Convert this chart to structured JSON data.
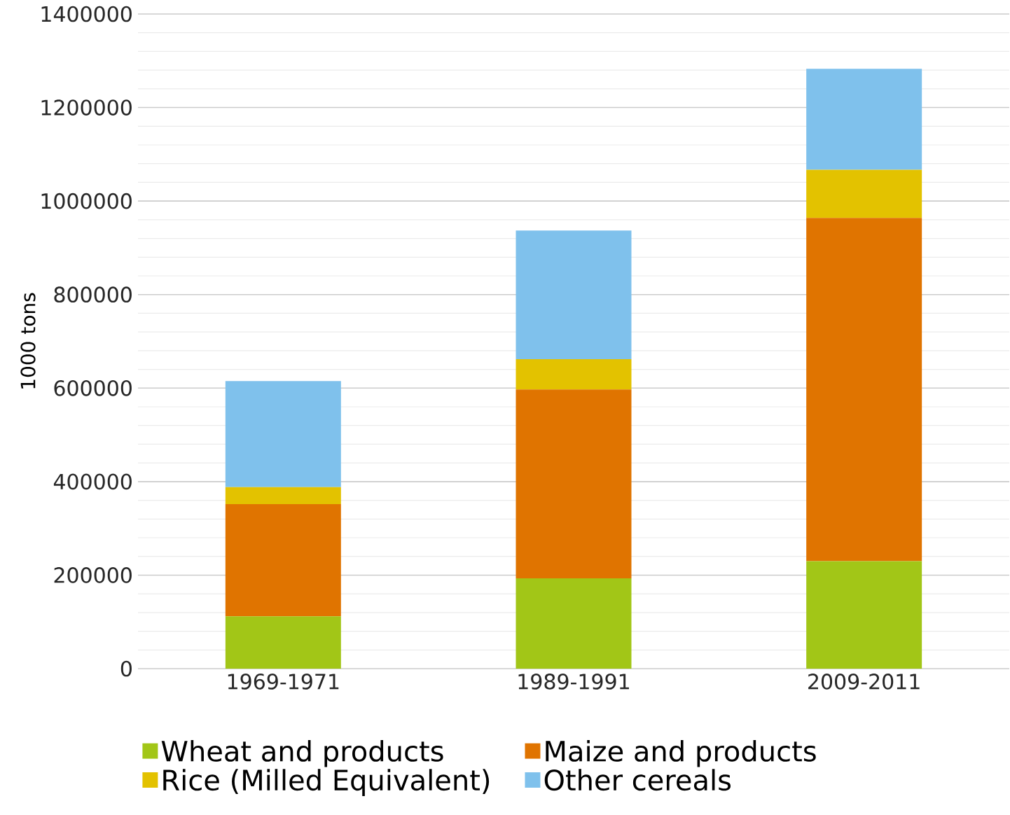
{
  "chart_data": {
    "type": "bar",
    "stacked": true,
    "ylabel": "1000 tons",
    "categories": [
      "1969-1971",
      "1989-1991",
      "2009-2011"
    ],
    "series": [
      {
        "name": "Wheat and products",
        "color": "#a2c617",
        "values": [
          112000,
          193000,
          230000
        ]
      },
      {
        "name": "Maize and products",
        "color": "#e07400",
        "values": [
          240000,
          404000,
          734000
        ]
      },
      {
        "name": "Rice (Milled Equivalent)",
        "color": "#e3c200",
        "values": [
          36000,
          65000,
          103000
        ]
      },
      {
        "name": "Other cereals",
        "color": "#7fc1ec",
        "values": [
          227000,
          275000,
          216000
        ]
      }
    ],
    "ylim": [
      0,
      1400000
    ],
    "yticks": [
      0,
      200000,
      400000,
      600000,
      800000,
      1000000,
      1200000,
      1400000
    ],
    "grid": "y",
    "legend": "bottom"
  }
}
